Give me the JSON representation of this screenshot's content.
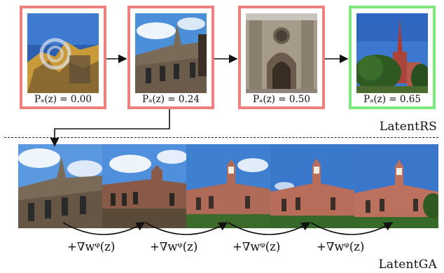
{
  "colors": {
    "rejected_border": "#f08080",
    "accepted_border": "#7ee87e",
    "arrow": "#111111"
  },
  "latent_rs": {
    "section_label": "LatentRS",
    "samples": [
      {
        "label": "Pₐ(z) = 0.00",
        "status": "rejected"
      },
      {
        "label": "Pₐ(z) = 0.24",
        "status": "rejected"
      },
      {
        "label": "Pₐ(z) = 0.50",
        "status": "rejected"
      },
      {
        "label": "Pₐ(z) = 0.65",
        "status": "accepted"
      }
    ]
  },
  "latent_ga": {
    "section_label": "LatentGA",
    "step_label": "+∇wᵠ(z)",
    "steps": [
      "+∇wᵠ(z)",
      "+∇wᵠ(z)",
      "+∇wᵠ(z)",
      "+∇wᵠ(z)"
    ]
  }
}
